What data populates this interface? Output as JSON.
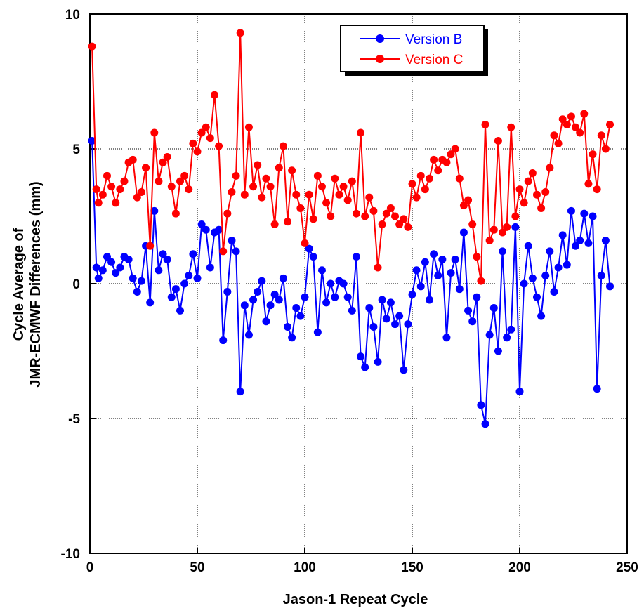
{
  "chart_data": {
    "type": "line",
    "title": "",
    "xlabel": "Jason-1 Repeat Cycle",
    "ylabel_lines": [
      "Cycle Average of",
      "JMR-ECMWF Differences (mm)"
    ],
    "xlim": [
      0,
      250
    ],
    "ylim": [
      -10,
      10
    ],
    "x_ticks": [
      0,
      50,
      100,
      150,
      200,
      250
    ],
    "y_ticks": [
      -10,
      -5,
      0,
      5,
      10
    ],
    "x_tick_labels": [
      "0",
      "50",
      "100",
      "150",
      "200",
      "250"
    ],
    "y_tick_labels": [
      "-10",
      "-5",
      "0",
      "5",
      "10"
    ],
    "grid": true,
    "legend_position": "top-right",
    "series": [
      {
        "name": "Version B",
        "color": "#0000ff",
        "x": [
          1,
          3,
          4,
          6,
          8,
          10,
          12,
          14,
          16,
          18,
          20,
          22,
          24,
          26,
          28,
          30,
          32,
          34,
          36,
          38,
          40,
          42,
          44,
          46,
          48,
          50,
          52,
          54,
          56,
          58,
          60,
          62,
          64,
          66,
          68,
          70,
          72,
          74,
          76,
          78,
          80,
          82,
          84,
          86,
          88,
          90,
          92,
          94,
          96,
          98,
          100,
          102,
          104,
          106,
          108,
          110,
          112,
          114,
          116,
          118,
          120,
          122,
          124,
          126,
          128,
          130,
          132,
          134,
          136,
          138,
          140,
          142,
          144,
          146,
          148,
          150,
          152,
          154,
          156,
          158,
          160,
          162,
          164,
          166,
          168,
          170,
          172,
          174,
          176,
          178,
          180,
          182,
          184,
          186,
          188,
          190,
          192,
          194,
          196,
          198,
          200,
          202,
          204,
          206,
          208,
          210,
          212,
          214,
          216,
          218,
          220,
          222,
          224,
          226,
          228,
          230,
          232,
          234,
          236,
          238,
          240,
          242
        ],
        "values": [
          5.3,
          0.6,
          0.2,
          0.5,
          1.0,
          0.8,
          0.4,
          0.6,
          1.0,
          0.9,
          0.2,
          -0.3,
          0.1,
          1.4,
          -0.7,
          2.7,
          0.5,
          1.1,
          0.9,
          -0.5,
          -0.2,
          -1.0,
          0.0,
          0.3,
          1.1,
          0.2,
          2.2,
          2.0,
          0.6,
          1.9,
          2.0,
          -2.1,
          -0.3,
          1.6,
          1.2,
          -4.0,
          -0.8,
          -1.9,
          -0.6,
          -0.3,
          0.1,
          -1.4,
          -0.8,
          -0.4,
          -0.6,
          0.2,
          -1.6,
          -2.0,
          -0.9,
          -1.2,
          -0.5,
          1.3,
          1.0,
          -1.8,
          0.5,
          -0.7,
          0.0,
          -0.5,
          0.1,
          0.0,
          -0.5,
          -1.0,
          1.0,
          -2.7,
          -3.1,
          -0.9,
          -1.6,
          -2.9,
          -0.6,
          -1.3,
          -0.7,
          -1.5,
          -1.2,
          -3.2,
          -1.5,
          -0.4,
          0.5,
          -0.1,
          0.8,
          -0.6,
          1.1,
          0.3,
          0.9,
          -2.0,
          0.4,
          0.9,
          -0.2,
          1.9,
          -1.0,
          -1.4,
          -0.5,
          -4.5,
          -5.2,
          -1.9,
          -0.9,
          -2.5,
          1.2,
          -2.0,
          -1.7,
          2.1,
          -4.0,
          0.0,
          1.4,
          0.2,
          -0.5,
          -1.2,
          0.3,
          1.2,
          -0.3,
          0.6,
          1.8,
          0.7,
          2.7,
          1.4,
          1.6,
          2.6,
          1.5,
          2.5,
          -3.9,
          0.3,
          1.6,
          -0.1
        ]
      },
      {
        "name": "Version C",
        "color": "#ff0000",
        "x": [
          1,
          3,
          4,
          6,
          8,
          10,
          12,
          14,
          16,
          18,
          20,
          22,
          24,
          26,
          28,
          30,
          32,
          34,
          36,
          38,
          40,
          42,
          44,
          46,
          48,
          50,
          52,
          54,
          56,
          58,
          60,
          62,
          64,
          66,
          68,
          70,
          72,
          74,
          76,
          78,
          80,
          82,
          84,
          86,
          88,
          90,
          92,
          94,
          96,
          98,
          100,
          102,
          104,
          106,
          108,
          110,
          112,
          114,
          116,
          118,
          120,
          122,
          124,
          126,
          128,
          130,
          132,
          134,
          136,
          138,
          140,
          142,
          144,
          146,
          148,
          150,
          152,
          154,
          156,
          158,
          160,
          162,
          164,
          166,
          168,
          170,
          172,
          174,
          176,
          178,
          180,
          182,
          184,
          186,
          188,
          190,
          192,
          194,
          196,
          198,
          200,
          202,
          204,
          206,
          208,
          210,
          212,
          214,
          216,
          218,
          220,
          222,
          224,
          226,
          228,
          230,
          232,
          234,
          236,
          238,
          240,
          242
        ],
        "values": [
          8.8,
          3.5,
          3.0,
          3.3,
          4.0,
          3.6,
          3.0,
          3.5,
          3.8,
          4.5,
          4.6,
          3.2,
          3.4,
          4.3,
          1.4,
          5.6,
          3.8,
          4.5,
          4.7,
          3.6,
          2.6,
          3.8,
          4.0,
          3.5,
          5.2,
          4.9,
          5.6,
          5.8,
          5.4,
          7.0,
          5.1,
          1.2,
          2.6,
          3.4,
          4.0,
          9.3,
          3.3,
          5.8,
          3.6,
          4.4,
          3.2,
          3.9,
          3.6,
          2.2,
          4.3,
          5.1,
          2.3,
          4.2,
          3.3,
          2.8,
          1.5,
          3.3,
          2.4,
          4.0,
          3.6,
          3.0,
          2.5,
          3.9,
          3.3,
          3.6,
          3.1,
          3.8,
          2.6,
          5.6,
          2.5,
          3.2,
          2.7,
          0.6,
          2.2,
          2.6,
          2.8,
          2.5,
          2.2,
          2.4,
          2.1,
          3.7,
          3.2,
          4.0,
          3.5,
          3.9,
          4.6,
          4.2,
          4.6,
          4.5,
          4.8,
          5.0,
          3.9,
          2.9,
          3.1,
          2.2,
          1.0,
          0.1,
          5.9,
          1.6,
          2.0,
          5.3,
          1.9,
          2.1,
          5.8,
          2.5,
          3.5,
          3.0,
          3.8,
          4.1,
          3.3,
          2.8,
          3.4,
          4.3,
          5.5,
          5.2,
          6.1,
          5.9,
          6.2,
          5.8,
          5.6,
          6.3,
          3.7,
          4.8,
          3.5,
          5.5,
          5.0,
          5.9
        ]
      }
    ]
  }
}
